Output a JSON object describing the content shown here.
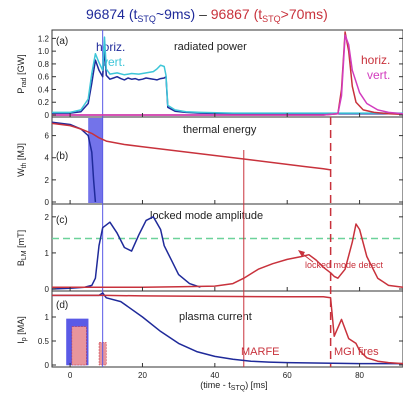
{
  "header": {
    "shot_a": "96874 (t",
    "shot_a_sub": "STQ",
    "shot_a_tail": "~9ms)",
    "dash": " – ",
    "shot_b": "96867 (t",
    "shot_b_sub": "STQ",
    "shot_b_tail": ">70ms)"
  },
  "colors": {
    "shot_a": "#1f2a9a",
    "shot_a_alt": "#3ec6d8",
    "shot_b": "#c8323c",
    "shot_b_alt": "#d23cbe",
    "highlight": "#5a5ae6",
    "threshold": "#6cd29a",
    "axis": "#333333"
  },
  "chart_data": [
    {
      "type": "line",
      "panel": "(a)",
      "title": "radiated power",
      "ylabel": "P",
      "ylabel_sub": "rad",
      "ylabel_unit": " [GW]",
      "xlim": [
        -5,
        92
      ],
      "ylim": [
        0,
        1.3
      ],
      "yticks": [
        0,
        0.2,
        0.4,
        0.6,
        0.8,
        1.0,
        1.2
      ],
      "ytick_labels": [
        "0",
        "0.2",
        "0.4",
        "0.6",
        "0.8",
        "1.0",
        "1.2"
      ],
      "legend": {
        "horiz": "horiz.",
        "vert": "vert."
      },
      "legend_b": {
        "horiz": "horiz.",
        "vert": "vert."
      },
      "series": [
        {
          "name": "horiz.",
          "shot": "96874",
          "color_key": "shot_a",
          "x": [
            -5,
            0,
            3,
            5,
            6,
            7,
            8,
            9,
            9.5,
            10,
            11,
            12,
            13,
            14,
            15,
            16,
            17,
            18,
            19,
            20,
            21,
            22,
            23,
            24,
            25,
            26,
            26.5,
            27,
            29,
            32,
            36,
            45,
            60,
            74,
            76,
            80,
            85,
            92
          ],
          "y": [
            0.03,
            0.03,
            0.05,
            0.18,
            0.5,
            0.86,
            0.7,
            0.6,
            1.05,
            0.62,
            0.56,
            0.58,
            0.6,
            0.57,
            0.55,
            0.58,
            0.56,
            0.57,
            0.55,
            0.56,
            0.58,
            0.57,
            0.56,
            0.55,
            0.57,
            0.58,
            0.6,
            0.12,
            0.06,
            0.04,
            0.03,
            0.02,
            0.02,
            0.02,
            0.02,
            0.02,
            0.02,
            0.02
          ]
        },
        {
          "name": "vert.",
          "shot": "96874",
          "color_key": "shot_a_alt",
          "x": [
            -5,
            0,
            3,
            5,
            6,
            7,
            8,
            9,
            9.5,
            10,
            11,
            13,
            15,
            17,
            19,
            21,
            23,
            24,
            25,
            26,
            26.5,
            27,
            29,
            32,
            36,
            45,
            60,
            74,
            76,
            80,
            85,
            92
          ],
          "y": [
            0.04,
            0.04,
            0.08,
            0.25,
            0.65,
            0.96,
            0.82,
            0.7,
            1.22,
            0.72,
            0.64,
            0.66,
            0.63,
            0.65,
            0.64,
            0.66,
            0.68,
            0.72,
            0.78,
            0.76,
            0.62,
            0.15,
            0.08,
            0.05,
            0.04,
            0.03,
            0.03,
            0.03,
            0.03,
            0.03,
            0.03,
            0.03
          ]
        },
        {
          "name": "horiz.",
          "shot": "96867",
          "color_key": "shot_b",
          "x": [
            -5,
            10,
            30,
            50,
            70,
            74,
            75,
            76,
            77,
            78,
            79,
            81,
            84,
            88,
            92
          ],
          "y": [
            0.0,
            0.0,
            0.0,
            0.0,
            0.0,
            0.02,
            0.4,
            1.3,
            1.0,
            0.45,
            0.2,
            0.08,
            0.04,
            0.02,
            0.01
          ]
        },
        {
          "name": "vert.",
          "shot": "96867",
          "color_key": "shot_b_alt",
          "x": [
            -5,
            10,
            30,
            50,
            70,
            74,
            75,
            76,
            77,
            78,
            80,
            82,
            85,
            88,
            92
          ],
          "y": [
            0.0,
            0.0,
            0.0,
            0.0,
            0.0,
            0.02,
            0.3,
            1.25,
            1.1,
            0.7,
            0.35,
            0.18,
            0.08,
            0.04,
            0.02
          ]
        }
      ]
    },
    {
      "type": "line",
      "panel": "(b)",
      "title": "thermal energy",
      "ylabel": "W",
      "ylabel_sub": "th",
      "ylabel_unit": " [MJ]",
      "xlim": [
        -5,
        92
      ],
      "ylim": [
        0,
        7.5
      ],
      "yticks": [
        0,
        2,
        4,
        6
      ],
      "ytick_labels": [
        "0",
        "2",
        "4",
        "6"
      ],
      "highlight_x": [
        5,
        9
      ],
      "series": [
        {
          "name": "96874",
          "color_key": "shot_a",
          "x": [
            -5,
            0,
            3,
            5,
            6,
            6.5,
            7
          ],
          "y": [
            7.2,
            7.0,
            6.6,
            6.0,
            4.5,
            2.0,
            0.0
          ]
        },
        {
          "name": "96867",
          "color_key": "shot_b",
          "x": [
            -5,
            0,
            3,
            6,
            8,
            10,
            15,
            20,
            30,
            40,
            50,
            60,
            65,
            70,
            72
          ],
          "y": [
            7.1,
            6.9,
            6.6,
            6.2,
            5.8,
            5.5,
            5.2,
            5.0,
            4.6,
            4.2,
            3.8,
            3.4,
            3.2,
            3.0,
            2.9
          ]
        }
      ]
    },
    {
      "type": "line",
      "panel": "(c)",
      "title": "locked mode amplitude",
      "ylabel": "B",
      "ylabel_sub": "LM",
      "ylabel_unit": " [mT]",
      "xlim": [
        -5,
        92
      ],
      "ylim": [
        0,
        2.3
      ],
      "yticks": [
        0,
        1,
        2
      ],
      "ytick_labels": [
        "0",
        "1",
        "2"
      ],
      "threshold": 1.4,
      "annotation": "locked mode detect",
      "series": [
        {
          "name": "96874",
          "color_key": "shot_a",
          "x": [
            -5,
            0,
            4,
            6,
            7,
            8,
            9,
            11,
            13,
            15,
            17,
            19,
            21,
            23,
            25,
            26,
            28,
            30,
            33,
            36
          ],
          "y": [
            0.0,
            0.02,
            0.05,
            0.1,
            0.3,
            1.2,
            1.7,
            1.85,
            1.55,
            1.15,
            1.05,
            1.5,
            1.9,
            2.0,
            1.65,
            1.2,
            0.8,
            0.4,
            0.15,
            0.05
          ]
        },
        {
          "name": "96867",
          "color_key": "shot_b",
          "x": [
            -5,
            10,
            20,
            30,
            40,
            45,
            48,
            52,
            56,
            60,
            64,
            66,
            68,
            70,
            72,
            73,
            74,
            76,
            78,
            79,
            80,
            82,
            85,
            88,
            92
          ],
          "y": [
            0.05,
            0.05,
            0.05,
            0.06,
            0.08,
            0.15,
            0.3,
            0.55,
            0.7,
            0.82,
            0.9,
            0.95,
            0.8,
            0.6,
            0.45,
            0.35,
            0.3,
            0.55,
            1.3,
            1.8,
            1.65,
            0.9,
            0.3,
            0.1,
            0.05
          ]
        }
      ]
    },
    {
      "type": "line",
      "panel": "(d)",
      "title": "plasma current",
      "ylabel": "I",
      "ylabel_sub": "p",
      "ylabel_unit": " [MA]",
      "xlim": [
        -5,
        92
      ],
      "ylim": [
        0,
        1.5
      ],
      "yticks": [
        0,
        0.5,
        1
      ],
      "ytick_labels": [
        "0",
        "0.5",
        "1"
      ],
      "xticks": [
        0,
        20,
        40,
        60,
        80
      ],
      "xtick_labels": [
        "0",
        "20",
        "40",
        "60",
        "80"
      ],
      "xlabel": "(time - t",
      "xlabel_sub": "STQ",
      "xlabel_unit": ") [ms]",
      "markers": [
        {
          "x": 48,
          "label": "MARFE"
        },
        {
          "x": 72,
          "label": "MGI fires"
        }
      ],
      "bars": [
        {
          "shot": "96874",
          "color_key": "highlight",
          "x": [
            -1,
            5
          ],
          "value": 0.96
        },
        {
          "shot": "96867",
          "color_key": "shot_b",
          "x": [
            0.5,
            4.5
          ],
          "value": 0.8
        },
        {
          "shot": "96867",
          "color_key": "shot_b",
          "x": [
            8,
            10
          ],
          "value": 0.47
        }
      ],
      "series": [
        {
          "name": "96874",
          "color_key": "shot_a",
          "x": [
            -5,
            8,
            9,
            10,
            14,
            20,
            25,
            30,
            35,
            40,
            45,
            50,
            55,
            60,
            70,
            80,
            92
          ],
          "y": [
            1.45,
            1.45,
            1.5,
            1.4,
            1.32,
            1.0,
            0.7,
            0.45,
            0.28,
            0.18,
            0.12,
            0.08,
            0.06,
            0.05,
            0.04,
            0.03,
            0.03
          ]
        },
        {
          "name": "96867",
          "color_key": "shot_b",
          "x": [
            -5,
            10,
            20,
            40,
            60,
            70,
            72,
            73,
            75,
            77,
            79,
            80,
            82,
            85,
            88,
            92
          ],
          "y": [
            1.45,
            1.45,
            1.44,
            1.43,
            1.42,
            1.42,
            1.4,
            0.6,
            0.95,
            0.55,
            0.45,
            0.3,
            0.15,
            0.08,
            0.05,
            0.03
          ]
        }
      ]
    }
  ]
}
